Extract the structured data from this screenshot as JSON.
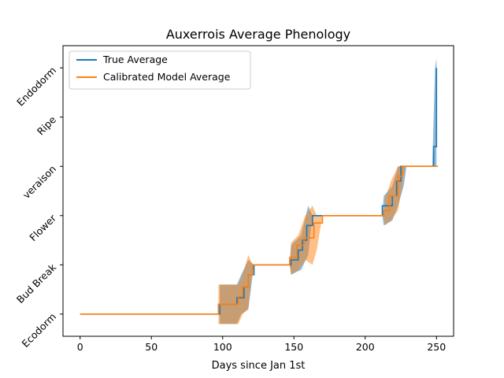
{
  "chart_data": {
    "type": "line",
    "title": "Auxerrois Average Phenology",
    "xlabel": "Days since Jan 1st",
    "ylabel": "",
    "xlim": [
      -12,
      262
    ],
    "ylim": [
      -0.45,
      5.45
    ],
    "xticks": [
      0,
      50,
      100,
      150,
      200,
      250
    ],
    "yticks": [
      0,
      1,
      2,
      3,
      4,
      5
    ],
    "ytick_labels": [
      "Ecodorm",
      "Bud Break",
      "Flower",
      "veraison",
      "Ripe",
      "Endodorm"
    ],
    "legend_position": "upper-left",
    "grid": false,
    "series": [
      {
        "name": "True Average",
        "color": "#1f77b4",
        "points": [
          [
            0,
            0
          ],
          [
            98,
            0
          ],
          [
            98,
            0.2
          ],
          [
            110,
            0.2
          ],
          [
            110,
            0.33
          ],
          [
            115,
            0.33
          ],
          [
            115,
            0.55
          ],
          [
            118,
            0.55
          ],
          [
            118,
            0.8
          ],
          [
            122,
            0.8
          ],
          [
            122,
            1.0
          ],
          [
            148,
            1.0
          ],
          [
            148,
            1.1
          ],
          [
            153,
            1.1
          ],
          [
            153,
            1.3
          ],
          [
            156,
            1.3
          ],
          [
            156,
            1.5
          ],
          [
            159,
            1.5
          ],
          [
            159,
            1.8
          ],
          [
            163,
            1.8
          ],
          [
            163,
            2.0
          ],
          [
            212,
            2.0
          ],
          [
            212,
            2.2
          ],
          [
            219,
            2.2
          ],
          [
            219,
            2.4
          ],
          [
            222,
            2.4
          ],
          [
            222,
            2.7
          ],
          [
            225,
            2.7
          ],
          [
            225,
            3.0
          ],
          [
            248,
            3.0
          ],
          [
            248,
            3.4
          ],
          [
            250,
            3.4
          ],
          [
            250,
            5.0
          ]
        ],
        "band": [
          [
            98,
            -0.2,
            0.6
          ],
          [
            110,
            -0.2,
            0.6
          ],
          [
            113,
            0.0,
            0.8
          ],
          [
            118,
            0.1,
            1.1
          ],
          [
            122,
            1.0,
            1.0
          ],
          [
            147,
            1.0,
            1.0
          ],
          [
            148,
            0.8,
            1.4
          ],
          [
            155,
            0.9,
            1.6
          ],
          [
            160,
            1.2,
            2.2
          ],
          [
            163,
            2.0,
            2.0
          ],
          [
            212,
            2.0,
            2.0
          ],
          [
            213,
            1.8,
            2.4
          ],
          [
            219,
            1.9,
            2.6
          ],
          [
            223,
            2.2,
            3.0
          ],
          [
            227,
            2.6,
            3.0
          ],
          [
            229,
            3.0,
            3.0
          ],
          [
            247,
            3.0,
            3.0
          ],
          [
            249,
            3.0,
            5.0
          ],
          [
            250,
            3.0,
            5.2
          ]
        ]
      },
      {
        "name": "Calibrated Model Average",
        "color": "#ff7f0e",
        "points": [
          [
            0,
            0
          ],
          [
            97,
            0
          ],
          [
            97,
            0.2
          ],
          [
            111,
            0.2
          ],
          [
            111,
            0.35
          ],
          [
            114,
            0.35
          ],
          [
            114,
            0.55
          ],
          [
            118,
            0.55
          ],
          [
            118,
            0.8
          ],
          [
            121,
            0.8
          ],
          [
            121,
            1.0
          ],
          [
            147,
            1.0
          ],
          [
            147,
            1.15
          ],
          [
            152,
            1.15
          ],
          [
            152,
            1.4
          ],
          [
            157,
            1.4
          ],
          [
            157,
            1.55
          ],
          [
            164,
            1.55
          ],
          [
            164,
            1.85
          ],
          [
            170,
            1.85
          ],
          [
            170,
            2.0
          ],
          [
            213,
            2.0
          ],
          [
            213,
            2.1
          ],
          [
            217,
            2.1
          ],
          [
            217,
            2.4
          ],
          [
            223,
            2.4
          ],
          [
            223,
            2.8
          ],
          [
            226,
            2.8
          ],
          [
            226,
            3.0
          ],
          [
            251,
            3.0
          ]
        ],
        "band": [
          [
            97,
            -0.2,
            0.6
          ],
          [
            111,
            -0.2,
            0.6
          ],
          [
            114,
            0.0,
            0.8
          ],
          [
            118,
            0.1,
            1.2
          ],
          [
            121,
            1.0,
            1.0
          ],
          [
            147,
            1.0,
            1.0
          ],
          [
            148,
            0.8,
            1.45
          ],
          [
            153,
            0.9,
            1.6
          ],
          [
            158,
            1.1,
            2.0
          ],
          [
            163,
            1.0,
            2.2
          ],
          [
            166,
            1.3,
            2.0
          ],
          [
            170,
            2.0,
            2.0
          ],
          [
            213,
            2.0,
            2.0
          ],
          [
            214,
            1.8,
            2.35
          ],
          [
            218,
            1.9,
            2.7
          ],
          [
            223,
            2.1,
            3.0
          ],
          [
            226,
            2.6,
            3.0
          ],
          [
            228,
            3.0,
            3.0
          ],
          [
            251,
            3.0,
            3.0
          ]
        ]
      }
    ]
  }
}
